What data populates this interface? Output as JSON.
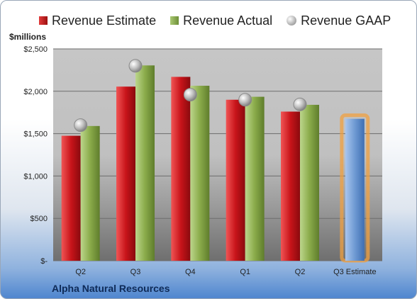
{
  "chart_data": {
    "type": "bar",
    "unit_label": "$millions",
    "categories": [
      "Q2",
      "Q3",
      "Q4",
      "Q1",
      "Q2",
      "Q3 Estimate"
    ],
    "series": [
      {
        "name": "Revenue Estimate",
        "kind": "bar",
        "color": "#c8141a",
        "values": [
          1475,
          2055,
          2170,
          1900,
          1760,
          1675
        ]
      },
      {
        "name": "Revenue Actual",
        "kind": "bar",
        "color": "#8aab4a",
        "values": [
          1590,
          2305,
          2065,
          1935,
          1840,
          null
        ]
      },
      {
        "name": "Revenue GAAP",
        "kind": "marker",
        "color": "#b0b0b0",
        "values": [
          1600,
          2300,
          1960,
          1900,
          1845,
          null
        ]
      }
    ],
    "highlight": {
      "category": "Q3 Estimate",
      "color": "#6f9ad3"
    },
    "ylim": [
      0,
      2500
    ],
    "yticks": [
      0,
      500,
      1000,
      1500,
      2000,
      2500
    ],
    "ytick_labels": [
      "$-",
      "$500",
      "$1,000",
      "$1,500",
      "$2,000",
      "$2,500"
    ],
    "grid": true,
    "legend_position": "top"
  },
  "footer": {
    "company": "Alpha Natural Resources"
  }
}
